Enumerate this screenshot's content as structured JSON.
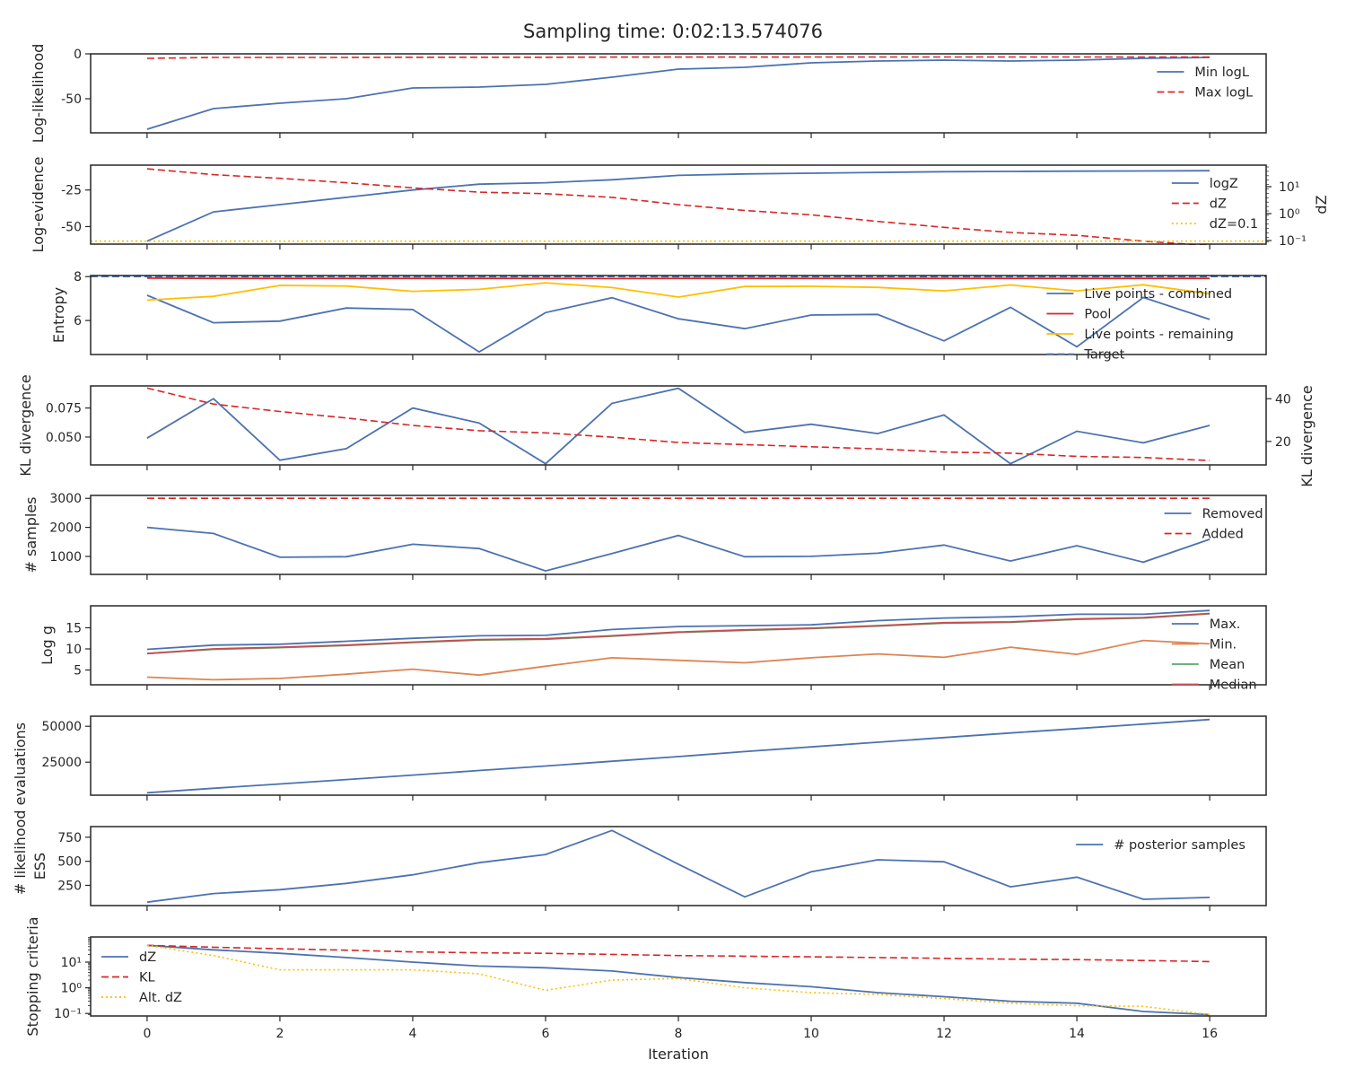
{
  "figure": {
    "title": "Sampling time: 0:02:13.574076",
    "xlabel": "Iteration",
    "xticks": [
      0,
      2,
      4,
      6,
      8,
      10,
      12,
      14,
      16
    ],
    "xlim": [
      -0.85,
      16.85
    ]
  },
  "chart_data": [
    {
      "type": "line",
      "ylabel": "Log-likelihood",
      "ylim": [
        -88,
        0
      ],
      "yticks": [
        0,
        -50
      ],
      "x": [
        0,
        1,
        2,
        3,
        4,
        5,
        6,
        7,
        8,
        9,
        10,
        11,
        12,
        13,
        14,
        15,
        16
      ],
      "legend_pos": "upper-right",
      "series": [
        {
          "name": "Min logL",
          "style": "solid",
          "color": "#4c72b0",
          "values": [
            -84,
            -61,
            -55,
            -50,
            -38,
            -37,
            -34,
            -26,
            -17,
            -15,
            -10,
            -8,
            -7,
            -8,
            -7,
            -5,
            -4
          ]
        },
        {
          "name": "Max logL",
          "style": "dashed",
          "color": "#d62728",
          "values": [
            -5,
            -4,
            -4,
            -4,
            -3.8,
            -3.8,
            -3.8,
            -3.6,
            -3.6,
            -3.6,
            -3.5,
            -3.5,
            -3.5,
            -3.5,
            -3.5,
            -3.5,
            -3.5
          ]
        }
      ]
    },
    {
      "type": "line",
      "ylabel": "Log-evidence",
      "ylim": [
        -62,
        -8
      ],
      "yticks": [
        -25,
        -50
      ],
      "x": [
        0,
        1,
        2,
        3,
        4,
        5,
        6,
        7,
        8,
        9,
        10,
        11,
        12,
        13,
        14,
        15,
        16
      ],
      "legend_pos": "lower-right",
      "secondary_axis": {
        "label": "dZ",
        "scale": "log",
        "ticklabels": [
          "10¹",
          "10⁰",
          "10⁻¹"
        ]
      },
      "series": [
        {
          "name": "logZ",
          "style": "solid",
          "color": "#4c72b0",
          "values": [
            -60,
            -40,
            -35,
            -30,
            -25,
            -21,
            -20,
            -18,
            -15,
            -14,
            -13.5,
            -13,
            -12.5,
            -12.3,
            -12.1,
            -12,
            -11.8
          ]
        },
        {
          "name": "dZ",
          "style": "dashed",
          "color": "#d62728",
          "values": [
            -10.5,
            -14.5,
            -17,
            -20,
            -23.5,
            -26.5,
            -27.5,
            -30,
            -35,
            -39,
            -42,
            -46.5,
            -50.5,
            -54,
            -56,
            -60,
            -63
          ]
        },
        {
          "name": "dZ=0.1",
          "style": "dotted",
          "color": "#ffbf00",
          "values": [
            -60,
            -60,
            -60,
            -60,
            -60,
            -60,
            -60,
            -60,
            -60,
            -60,
            -60,
            -60,
            -60,
            -60,
            -60,
            -60,
            -60
          ]
        }
      ]
    },
    {
      "type": "line",
      "ylabel": "Entropy",
      "ylim": [
        4.45,
        8.05
      ],
      "yticks": [
        8,
        6
      ],
      "x": [
        0,
        1,
        2,
        3,
        4,
        5,
        6,
        7,
        8,
        9,
        10,
        11,
        12,
        13,
        14,
        15,
        16
      ],
      "legend_pos": "lower-right",
      "series": [
        {
          "name": "Live points - combined",
          "style": "solid",
          "color": "#4c72b0",
          "values": [
            7.15,
            5.9,
            5.97,
            6.57,
            6.5,
            4.57,
            6.36,
            7.04,
            6.08,
            5.63,
            6.25,
            6.28,
            5.07,
            6.6,
            4.8,
            7.05,
            6.05
          ]
        },
        {
          "name": "Pool",
          "style": "solid",
          "color": "#d62728",
          "values": [
            7.93,
            7.92,
            7.92,
            7.92,
            7.92,
            7.92,
            7.92,
            7.91,
            7.92,
            7.92,
            7.92,
            7.92,
            7.92,
            7.92,
            7.92,
            7.92,
            7.92
          ]
        },
        {
          "name": "Live points - remaining",
          "style": "solid",
          "color": "#ffbf00",
          "values": [
            6.93,
            7.1,
            7.6,
            7.57,
            7.33,
            7.42,
            7.72,
            7.5,
            7.07,
            7.55,
            7.56,
            7.51,
            7.35,
            7.62,
            7.35,
            7.63,
            7.22
          ]
        },
        {
          "name": "Target",
          "style": "dashed",
          "color": "#4c72b0",
          "values": [
            8,
            8,
            8,
            8,
            8,
            8,
            8,
            8,
            8,
            8,
            8,
            8,
            8,
            8,
            8,
            8,
            8
          ]
        }
      ]
    },
    {
      "type": "line",
      "ylabel": "KL divergence",
      "ylim": [
        0.026,
        0.094
      ],
      "yticks": [
        0.075,
        0.05
      ],
      "yticklabels": [
        "0.075",
        "0.050"
      ],
      "x": [
        0,
        1,
        2,
        3,
        4,
        5,
        6,
        7,
        8,
        9,
        10,
        11,
        12,
        13,
        14,
        15,
        16
      ],
      "secondary_axis": {
        "label": "KL divergence",
        "ylim": [
          9,
          46
        ],
        "yticks": [
          40,
          20
        ]
      },
      "series": [
        {
          "name": "",
          "style": "solid",
          "color": "#4c72b0",
          "axis": "left",
          "values": [
            0.049,
            0.083,
            0.03,
            0.04,
            0.075,
            0.062,
            0.027,
            0.079,
            0.092,
            0.054,
            0.061,
            0.053,
            0.069,
            0.027,
            0.055,
            0.045,
            0.06
          ]
        },
        {
          "name": "",
          "style": "dashed",
          "color": "#d62728",
          "axis": "right",
          "values": [
            45,
            37.5,
            34,
            31,
            27.5,
            25,
            24,
            22,
            19.5,
            18.5,
            17.5,
            16.5,
            15,
            14.5,
            13,
            12.5,
            11
          ]
        }
      ]
    },
    {
      "type": "line",
      "ylabel": "# samples",
      "ylim": [
        380,
        3100
      ],
      "yticks": [
        3000,
        2000,
        1000
      ],
      "x": [
        0,
        1,
        2,
        3,
        4,
        5,
        6,
        7,
        8,
        9,
        10,
        11,
        12,
        13,
        14,
        15,
        16
      ],
      "legend_pos": "upper-right",
      "series": [
        {
          "name": "Removed",
          "style": "solid",
          "color": "#4c72b0",
          "values": [
            2000,
            1790,
            970,
            990,
            1420,
            1270,
            500,
            1100,
            1720,
            990,
            1000,
            1110,
            1390,
            840,
            1370,
            800,
            1590
          ]
        },
        {
          "name": "Added",
          "style": "dashed",
          "color": "#d62728",
          "values": [
            3000,
            3000,
            3000,
            3000,
            3000,
            3000,
            3000,
            3000,
            3000,
            3000,
            3000,
            3000,
            3000,
            3000,
            3000,
            3000,
            3000
          ]
        }
      ]
    },
    {
      "type": "line",
      "ylabel": "Log g",
      "ylim": [
        1.5,
        20.2
      ],
      "yticks": [
        15,
        10,
        5
      ],
      "x": [
        0,
        1,
        2,
        3,
        4,
        5,
        6,
        7,
        8,
        9,
        10,
        11,
        12,
        13,
        14,
        15,
        16
      ],
      "legend_pos": "lower-right",
      "series": [
        {
          "name": "Max.",
          "style": "solid",
          "color": "#4c72b0",
          "values": [
            9.9,
            10.9,
            11.1,
            11.8,
            12.5,
            13.1,
            13.2,
            14.6,
            15.3,
            15.5,
            15.7,
            16.7,
            17.3,
            17.6,
            18.2,
            18.2,
            19.1
          ]
        },
        {
          "name": "Min.",
          "style": "solid",
          "color": "#dd8452",
          "values": [
            3.3,
            2.7,
            3.0,
            4.0,
            5.2,
            3.8,
            5.9,
            7.9,
            7.3,
            6.7,
            7.9,
            8.8,
            8.0,
            10.4,
            8.7,
            12.0,
            11.2
          ]
        },
        {
          "name": "Mean",
          "style": "solid",
          "color": "#55a868",
          "values": [
            8.9,
            9.9,
            10.3,
            10.8,
            11.5,
            12.1,
            12.3,
            13.0,
            13.9,
            14.4,
            14.8,
            15.4,
            16.1,
            16.3,
            17.0,
            17.3,
            18.3
          ]
        },
        {
          "name": "Median",
          "style": "solid",
          "color": "#c44e52",
          "values": [
            8.9,
            10.0,
            10.4,
            10.9,
            11.6,
            12.2,
            12.4,
            13.1,
            14.0,
            14.5,
            14.9,
            15.5,
            16.2,
            16.4,
            17.1,
            17.4,
            18.4
          ]
        }
      ]
    },
    {
      "type": "line",
      "ylabel": "# likelihood evaluations",
      "ylim": [
        2000,
        57000
      ],
      "yticks": [
        50000,
        25000
      ],
      "x": [
        0,
        1,
        2,
        3,
        4,
        5,
        6,
        7,
        8,
        9,
        10,
        11,
        12,
        13,
        14,
        15,
        16
      ],
      "series": [
        {
          "name": "",
          "style": "solid",
          "color": "#4c72b0",
          "values": [
            3700,
            6800,
            9800,
            12900,
            16000,
            19200,
            22300,
            25600,
            28900,
            32400,
            35600,
            38900,
            42100,
            45300,
            48400,
            51500,
            54700
          ]
        }
      ]
    },
    {
      "type": "line",
      "ylabel": "ESS",
      "ylim": [
        40,
        860
      ],
      "yticks": [
        750,
        500,
        250
      ],
      "x": [
        0,
        1,
        2,
        3,
        4,
        5,
        6,
        7,
        8,
        9,
        10,
        11,
        12,
        13,
        14,
        15,
        16
      ],
      "legend_pos": "upper-right",
      "series": [
        {
          "name": "# posterior samples",
          "style": "solid",
          "color": "#4c72b0",
          "values": [
            75,
            165,
            205,
            270,
            360,
            485,
            570,
            820,
            470,
            130,
            390,
            515,
            495,
            235,
            335,
            105,
            125
          ]
        }
      ]
    },
    {
      "type": "line",
      "ylabel": "Stopping criteria",
      "yscale": "log",
      "ylim": [
        0.08,
        95
      ],
      "yticks": [
        10,
        1,
        0.1
      ],
      "yticklabels": [
        "10¹",
        "10⁰",
        "10⁻¹"
      ],
      "x": [
        0,
        1,
        2,
        3,
        4,
        5,
        6,
        7,
        8,
        9,
        10,
        11,
        12,
        13,
        14,
        15,
        16
      ],
      "legend_pos": "upper-left",
      "series": [
        {
          "name": "dZ",
          "style": "solid",
          "color": "#4c72b0",
          "values": [
            45,
            30,
            22,
            15,
            10,
            7,
            6,
            4.5,
            2.5,
            1.6,
            1.1,
            0.65,
            0.45,
            0.3,
            0.25,
            0.12,
            0.09
          ]
        },
        {
          "name": "KL",
          "style": "dashed",
          "color": "#d62728",
          "values": [
            45,
            38,
            33,
            29,
            25,
            23,
            22,
            20,
            18,
            17,
            16,
            15,
            14,
            13,
            12.5,
            11.5,
            10.5
          ]
        },
        {
          "name": "Alt. dZ",
          "style": "dotted",
          "color": "#ffbf00",
          "values": [
            45,
            18,
            5,
            5,
            5,
            3.5,
            0.8,
            2,
            2.3,
            1,
            0.65,
            0.55,
            0.38,
            0.25,
            0.2,
            0.19,
            0.09
          ]
        }
      ]
    }
  ]
}
